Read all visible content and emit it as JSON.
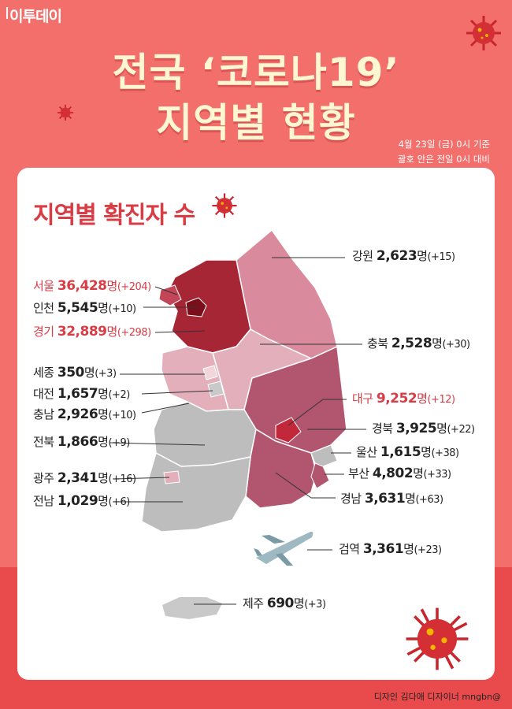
{
  "logo": "이투데이",
  "title_line1": "전국 ‘코로나19’",
  "title_line2": "지역별 현황",
  "date_line1": "4월 23일 (금) 0시 기준",
  "date_line2": "괄호 안은 전일 0시 대비",
  "subtitle": "지역별 확진자 수",
  "regions": [
    {
      "name": "강원",
      "count": "2,623",
      "unit": "명",
      "delta": "(+15)"
    },
    {
      "name": "서울",
      "count": "36,428",
      "unit": "명",
      "delta": "(+204)"
    },
    {
      "name": "인천",
      "count": "5,545",
      "unit": "명",
      "delta": "(+10)"
    },
    {
      "name": "경기",
      "count": "32,889",
      "unit": "명",
      "delta": "(+298)"
    },
    {
      "name": "충북",
      "count": "2,528",
      "unit": "명",
      "delta": "(+30)"
    },
    {
      "name": "세종",
      "count": "350",
      "unit": "명",
      "delta": "(+3)"
    },
    {
      "name": "대전",
      "count": "1,657",
      "unit": "명",
      "delta": "(+2)"
    },
    {
      "name": "충남",
      "count": "2,926",
      "unit": "명",
      "delta": "(+10)"
    },
    {
      "name": "대구",
      "count": "9,252",
      "unit": "명",
      "delta": "(+12)"
    },
    {
      "name": "경북",
      "count": "3,925",
      "unit": "명",
      "delta": "(+22)"
    },
    {
      "name": "전북",
      "count": "1,866",
      "unit": "명",
      "delta": "(+9)"
    },
    {
      "name": "울산",
      "count": "1,615",
      "unit": "명",
      "delta": "(+38)"
    },
    {
      "name": "부산",
      "count": "4,802",
      "unit": "명",
      "delta": "(+33)"
    },
    {
      "name": "광주",
      "count": "2,341",
      "unit": "명",
      "delta": "(+16)"
    },
    {
      "name": "전남",
      "count": "1,029",
      "unit": "명",
      "delta": "(+6)"
    },
    {
      "name": "경남",
      "count": "3,631",
      "unit": "명",
      "delta": "(+63)"
    },
    {
      "name": "검역",
      "count": "3,361",
      "unit": "명",
      "delta": "(+23)"
    },
    {
      "name": "제주",
      "count": "690",
      "unit": "명",
      "delta": "(+3)"
    }
  ],
  "credit": "디자인 김다애 디자이너 mngbn@",
  "colors": {
    "background": "#f36f6c",
    "title": "#fff6d2",
    "accent": "#d83c45",
    "region_darkest": "#8d1521",
    "region_dark": "#a72635",
    "region_medium": "#b2566f",
    "region_light": "#d98a9d",
    "region_pale": "#e3afbb",
    "region_gray": "#bdbdbd"
  },
  "icons": [
    "virus-icon",
    "airplane-icon"
  ]
}
